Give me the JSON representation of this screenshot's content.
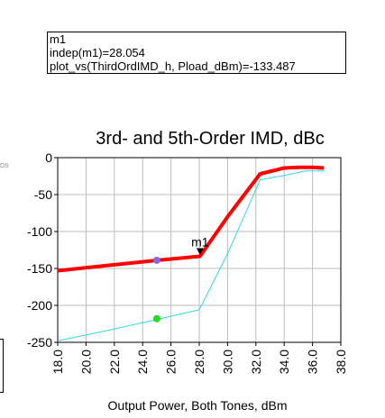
{
  "marker_readout": {
    "line1": "m1",
    "line2": "indep(m1)=28.054",
    "line3": "plot_vs(ThirdOrdIMD_h, Pload_dBm)=-133.487"
  },
  "side_glyph": "DS",
  "chart_data": {
    "type": "line",
    "title": "3rd- and 5th-Order IMD, dBc",
    "xlabel": "Output Power, Both Tones, dBm",
    "ylabel": "",
    "xlim": [
      18,
      38
    ],
    "ylim": [
      -250,
      0
    ],
    "x_ticks": [
      18,
      20,
      22,
      24,
      26,
      28,
      30,
      32,
      34,
      36,
      38
    ],
    "x_tick_labels": [
      "18.0",
      "20.0",
      "22.0",
      "24.0",
      "26.0",
      "28.0",
      "30.0",
      "32.0",
      "34.0",
      "36.0",
      "38.0"
    ],
    "y_ticks": [
      0,
      -50,
      -100,
      -150,
      -200,
      -250
    ],
    "y_tick_labels": [
      "0",
      "-50",
      "-100",
      "-150",
      "-200",
      "-250"
    ],
    "grid": true,
    "series": [
      {
        "color": "#ff0000",
        "width": 4,
        "x": [
          18.0,
          22.0,
          25.0,
          28.05,
          30.0,
          32.3,
          34.0,
          35.0,
          36.0,
          36.8
        ],
        "y": [
          -153,
          -145,
          -139,
          -133.487,
          -80,
          -22,
          -14,
          -13,
          -13,
          -14
        ]
      },
      {
        "color": "#33d6e0",
        "width": 1,
        "x": [
          18.0,
          22.0,
          25.0,
          28.0,
          30.0,
          32.3,
          34.0,
          35.5,
          36.8
        ],
        "y": [
          -248,
          -232,
          -219,
          -206,
          -130,
          -30,
          -24,
          -18,
          -18
        ]
      }
    ],
    "points": [
      {
        "x": 25.0,
        "y": -139,
        "color": "#8866dd"
      },
      {
        "x": 25.0,
        "y": -218,
        "color": "#22dd22"
      }
    ],
    "marker": {
      "label": "m1",
      "x": 28.054,
      "y": -133.487
    }
  }
}
